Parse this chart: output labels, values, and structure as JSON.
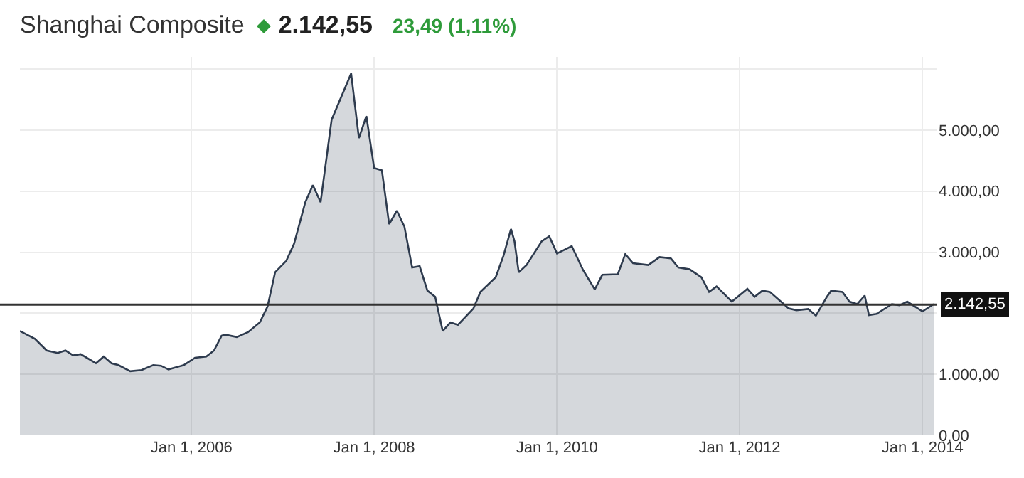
{
  "chart_data": {
    "type": "area",
    "title": "Shanghai Composite",
    "annotations": [
      "2.142,55",
      "23,49 (1,11%)"
    ],
    "x": [
      "2004-02-15",
      "2004-04-15",
      "2004-06-01",
      "2004-07-15",
      "2004-08-15",
      "2004-09-15",
      "2004-10-15",
      "2004-12-15",
      "2005-01-15",
      "2005-02-15",
      "2005-03-15",
      "2005-05-01",
      "2005-06-15",
      "2005-08-01",
      "2005-09-01",
      "2005-10-01",
      "2005-12-01",
      "2006-01-15",
      "2006-03-01",
      "2006-04-01",
      "2006-05-01",
      "2006-05-15",
      "2006-07-01",
      "2006-08-15",
      "2006-10-01",
      "2006-11-01",
      "2006-12-01",
      "2007-01-15",
      "2007-02-15",
      "2007-04-01",
      "2007-05-01",
      "2007-06-01",
      "2007-07-15",
      "2007-10-01",
      "2007-11-01",
      "2007-12-01",
      "2008-01-01",
      "2008-02-01",
      "2008-03-01",
      "2008-04-01",
      "2008-05-01",
      "2008-06-01",
      "2008-07-01",
      "2008-08-01",
      "2008-09-01",
      "2008-10-01",
      "2008-11-01",
      "2008-12-01",
      "2009-02-01",
      "2009-03-01",
      "2009-05-01",
      "2009-06-01",
      "2009-07-01",
      "2009-07-15",
      "2009-08-01",
      "2009-09-01",
      "2009-11-01",
      "2009-12-01",
      "2010-01-01",
      "2010-03-01",
      "2010-04-15",
      "2010-06-01",
      "2010-07-01",
      "2010-09-01",
      "2010-10-01",
      "2010-11-01",
      "2011-01-01",
      "2011-02-15",
      "2011-04-01",
      "2011-05-01",
      "2011-06-15",
      "2011-08-01",
      "2011-09-01",
      "2011-10-01",
      "2011-12-01",
      "2012-02-01",
      "2012-03-01",
      "2012-04-01",
      "2012-05-01",
      "2012-07-15",
      "2012-08-15",
      "2012-10-01",
      "2012-11-01",
      "2012-12-15",
      "2013-01-01",
      "2013-02-15",
      "2013-03-15",
      "2013-04-15",
      "2013-05-15",
      "2013-06-01",
      "2013-07-01",
      "2013-09-01",
      "2013-10-01",
      "2013-11-01",
      "2014-01-01",
      "2014-02-15"
    ],
    "series": [
      {
        "color": "#2e3b4e",
        "values": [
          1710,
          1580,
          1390,
          1350,
          1390,
          1310,
          1330,
          1180,
          1290,
          1180,
          1150,
          1050,
          1070,
          1150,
          1140,
          1080,
          1150,
          1270,
          1290,
          1390,
          1630,
          1650,
          1610,
          1690,
          1850,
          2110,
          2670,
          2860,
          3140,
          3820,
          4100,
          3820,
          5170,
          5930,
          4870,
          5230,
          4380,
          4340,
          3460,
          3680,
          3420,
          2750,
          2770,
          2370,
          2270,
          1710,
          1850,
          1810,
          2080,
          2350,
          2590,
          2940,
          3380,
          3180,
          2670,
          2790,
          3180,
          3260,
          2980,
          3100,
          2710,
          2390,
          2630,
          2640,
          2970,
          2820,
          2790,
          2920,
          2900,
          2750,
          2720,
          2590,
          2350,
          2440,
          2190,
          2400,
          2270,
          2370,
          2350,
          2080,
          2050,
          2070,
          1960,
          2270,
          2370,
          2350,
          2190,
          2150,
          2290,
          1970,
          1990,
          2150,
          2130,
          2190,
          2030,
          2150
        ]
      }
    ],
    "xlim": [
      "2004-02-15",
      "2014-03-01"
    ],
    "xticks": [
      {
        "value": "2006-01-01",
        "label": "Jan 1, 2006"
      },
      {
        "value": "2008-01-01",
        "label": "Jan 1, 2008"
      },
      {
        "value": "2010-01-01",
        "label": "Jan 1, 2010"
      },
      {
        "value": "2012-01-01",
        "label": "Jan 1, 2012"
      },
      {
        "value": "2014-01-01",
        "label": "Jan 1, 2014"
      }
    ],
    "ylim": [
      0,
      6200
    ],
    "yticks": [
      {
        "value": 0,
        "label": "0,00"
      },
      {
        "value": 1000,
        "label": "1.000,00"
      },
      {
        "value": 2000,
        "label": null
      },
      {
        "value": 3000,
        "label": "3.000,00"
      },
      {
        "value": 4000,
        "label": "4.000,00"
      },
      {
        "value": 5000,
        "label": "5.000,00"
      },
      {
        "value": 6000,
        "label": null
      }
    ],
    "ref_lines": [
      {
        "axis": "y",
        "value": 2142.55,
        "label": "2.142,55",
        "color": "#333333"
      }
    ],
    "grid": true
  }
}
